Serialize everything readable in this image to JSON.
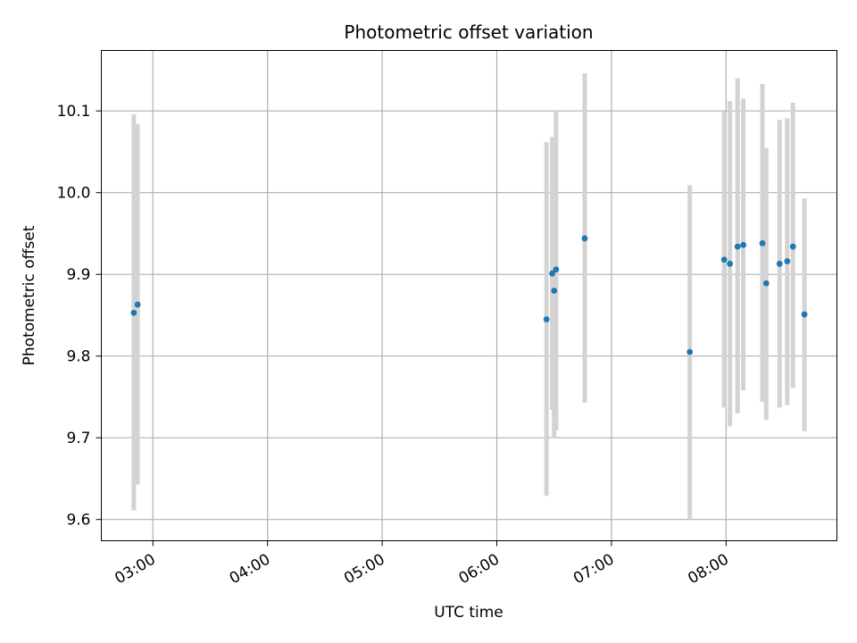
{
  "chart_data": {
    "type": "scatter",
    "title": "Photometric offset variation",
    "xlabel": "UTC time",
    "ylabel": "Photometric offset",
    "x_axis_kind": "time",
    "xlim": [
      "02:33",
      "08:58"
    ],
    "ylim": [
      9.574,
      10.174
    ],
    "xticks": [
      "03:00",
      "04:00",
      "05:00",
      "06:00",
      "07:00",
      "08:00"
    ],
    "yticks": [
      9.6,
      9.7,
      9.8,
      9.9,
      10.0,
      10.1
    ],
    "ytick_labels": [
      "9.6",
      "9.7",
      "9.8",
      "9.9",
      "10.0",
      "10.1"
    ],
    "grid": true,
    "point_color": "#1f77b4",
    "errorbar_color": "#d3d3d3",
    "series": [
      {
        "points": [
          {
            "x": "02:50",
            "y": 9.853,
            "low": 9.611,
            "high": 10.096
          },
          {
            "x": "02:52",
            "y": 9.863,
            "low": 9.643,
            "high": 10.084
          },
          {
            "x": "06:26",
            "y": 9.845,
            "low": 9.629,
            "high": 10.062
          },
          {
            "x": "06:29",
            "y": 9.901,
            "low": 9.734,
            "high": 10.068
          },
          {
            "x": "06:30",
            "y": 9.88,
            "low": 9.699,
            "high": 10.061
          },
          {
            "x": "06:31",
            "y": 9.906,
            "low": 9.709,
            "high": 10.1
          },
          {
            "x": "06:46",
            "y": 9.944,
            "low": 9.743,
            "high": 10.146
          },
          {
            "x": "07:41",
            "y": 9.805,
            "low": 9.6,
            "high": 10.009
          },
          {
            "x": "07:59",
            "y": 9.918,
            "low": 9.737,
            "high": 10.099
          },
          {
            "x": "08:02",
            "y": 9.913,
            "low": 9.714,
            "high": 10.112
          },
          {
            "x": "08:06",
            "y": 9.934,
            "low": 9.73,
            "high": 10.14
          },
          {
            "x": "08:09",
            "y": 9.936,
            "low": 9.758,
            "high": 10.115
          },
          {
            "x": "08:19",
            "y": 9.938,
            "low": 9.744,
            "high": 10.133
          },
          {
            "x": "08:21",
            "y": 9.889,
            "low": 9.722,
            "high": 10.055
          },
          {
            "x": "08:28",
            "y": 9.913,
            "low": 9.737,
            "high": 10.089
          },
          {
            "x": "08:32",
            "y": 9.916,
            "low": 9.74,
            "high": 10.091
          },
          {
            "x": "08:35",
            "y": 9.934,
            "low": 9.761,
            "high": 10.11
          },
          {
            "x": "08:41",
            "y": 9.851,
            "low": 9.708,
            "high": 9.993
          }
        ]
      }
    ]
  }
}
